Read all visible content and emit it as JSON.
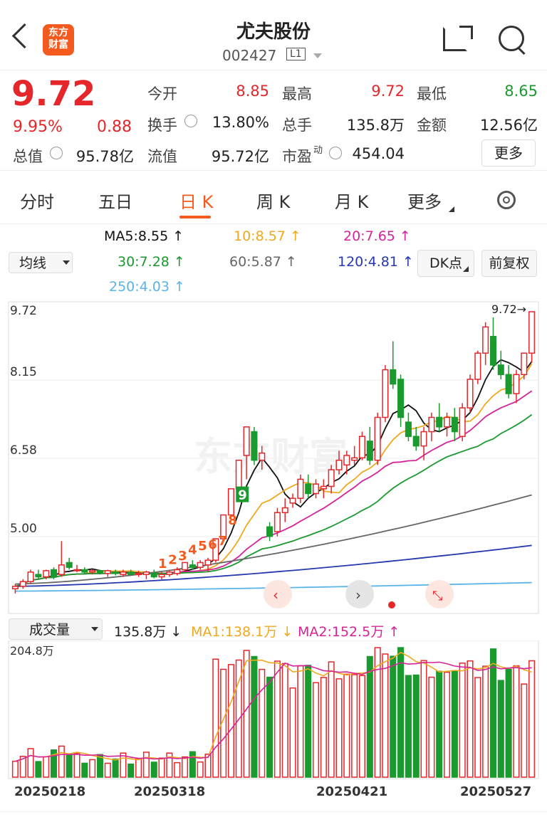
{
  "header": {
    "title": "尤夫股份",
    "code": "002427",
    "level": "L1",
    "logo_line1": "东方",
    "logo_line2": "财富"
  },
  "quote": {
    "price": "9.72",
    "change_pct": "9.95%",
    "change": "0.88",
    "open_label": "今开",
    "open": "8.85",
    "high_label": "最高",
    "high": "9.72",
    "low_label": "最低",
    "low": "8.65",
    "turnover_label": "换手",
    "turnover": "13.80%",
    "volume_label": "总手",
    "volume": "135.8万",
    "amount_label": "金额",
    "amount": "12.56亿",
    "mktcap_label": "总值",
    "mktcap": "95.78亿",
    "float_label": "流值",
    "float": "95.72亿",
    "pe_label": "市盈",
    "pe_sup": "动",
    "pe": "454.04",
    "more": "更多"
  },
  "tabs": [
    {
      "label": "分时"
    },
    {
      "label": "五日"
    },
    {
      "label": "日 K"
    },
    {
      "label": "周 K"
    },
    {
      "label": "月 K"
    },
    {
      "label": "更多"
    }
  ],
  "indicators": {
    "ma_select": "均线",
    "ma5": "MA5:8.55 ↑",
    "ma10": "10:8.57 ↑",
    "ma20": "20:7.65 ↑",
    "ma30": "30:7.28 ↑",
    "ma60": "60:5.87 ↑",
    "ma120": "120:4.81 ↑",
    "ma250": "250:4.03 ↑",
    "dk_button": "DK点",
    "fq_button": "前复权"
  },
  "price_axis": [
    "9.72",
    "8.15",
    "6.58",
    "5.00"
  ],
  "price_marker": "9.72→",
  "signal_numbers": [
    "1",
    "2",
    "3",
    "4",
    "5",
    "6",
    "7",
    "8",
    "9"
  ],
  "volume_panel": {
    "select": "成交量",
    "vol": "135.8万 ↓",
    "ma1": "MA1:138.1万 ↓",
    "ma2": "MA2:152.5万 ↑",
    "axis_max": "204.8万"
  },
  "date_labels": [
    "20250218",
    "20250318",
    "20250421",
    "20250527"
  ],
  "watermark": "东方财富",
  "colors": {
    "up": "#e5262b",
    "down": "#1b9a2f",
    "accent": "#f45a1e"
  },
  "chart_data": {
    "type": "candlestick",
    "candles": [
      [
        3.9,
        4.0,
        3.8,
        3.95
      ],
      [
        3.95,
        4.1,
        3.9,
        4.05
      ],
      [
        4.05,
        4.3,
        4.0,
        4.25
      ],
      [
        4.2,
        4.3,
        4.1,
        4.15
      ],
      [
        4.15,
        4.3,
        4.1,
        4.28
      ],
      [
        4.3,
        4.35,
        4.1,
        4.15
      ],
      [
        4.2,
        4.9,
        4.15,
        4.4
      ],
      [
        4.45,
        4.55,
        4.3,
        4.35
      ],
      [
        4.3,
        4.4,
        4.25,
        4.3
      ],
      [
        4.3,
        4.35,
        4.2,
        4.25
      ],
      [
        4.25,
        4.3,
        4.2,
        4.28
      ],
      [
        4.28,
        4.3,
        4.2,
        4.22
      ],
      [
        4.22,
        4.3,
        4.15,
        4.28
      ],
      [
        4.25,
        4.3,
        4.18,
        4.22
      ],
      [
        4.2,
        4.3,
        4.15,
        4.25
      ],
      [
        4.25,
        4.3,
        4.18,
        4.2
      ],
      [
        4.2,
        4.28,
        4.15,
        4.22
      ],
      [
        4.2,
        4.28,
        4.1,
        4.25
      ],
      [
        4.22,
        4.3,
        4.12,
        4.15
      ],
      [
        4.15,
        4.25,
        4.1,
        4.2
      ],
      [
        4.2,
        4.3,
        4.15,
        4.25
      ],
      [
        4.22,
        4.35,
        4.18,
        4.3
      ],
      [
        4.3,
        4.45,
        4.25,
        4.45
      ],
      [
        4.4,
        4.5,
        4.3,
        4.35
      ],
      [
        4.35,
        4.5,
        4.3,
        4.45
      ],
      [
        4.4,
        4.55,
        4.25,
        4.5
      ],
      [
        4.5,
        4.95,
        4.45,
        4.95
      ],
      [
        4.95,
        5.45,
        4.9,
        5.45
      ],
      [
        5.45,
        6.0,
        5.4,
        6.0
      ],
      [
        6.0,
        6.6,
        5.95,
        6.6
      ],
      [
        6.7,
        7.3,
        6.2,
        7.3
      ],
      [
        7.2,
        7.3,
        6.5,
        6.6
      ],
      [
        6.6,
        6.9,
        6.4,
        6.75
      ],
      [
        5.2,
        5.3,
        4.9,
        5.0
      ],
      [
        5.1,
        5.6,
        5.0,
        5.5
      ],
      [
        5.5,
        5.8,
        5.3,
        5.6
      ],
      [
        5.7,
        5.9,
        5.6,
        5.8
      ],
      [
        5.8,
        6.3,
        5.7,
        6.2
      ],
      [
        6.1,
        6.3,
        5.8,
        5.9
      ],
      [
        5.9,
        6.2,
        5.8,
        6.1
      ],
      [
        6.0,
        6.2,
        5.8,
        6.05
      ],
      [
        6.05,
        6.5,
        5.9,
        6.4
      ],
      [
        6.4,
        6.8,
        6.3,
        6.6
      ],
      [
        6.5,
        6.8,
        6.3,
        6.7
      ],
      [
        6.6,
        6.9,
        6.5,
        6.65
      ],
      [
        6.65,
        7.2,
        6.6,
        7.1
      ],
      [
        7.0,
        7.3,
        6.5,
        6.6
      ],
      [
        6.6,
        7.6,
        6.5,
        7.5
      ],
      [
        7.5,
        8.6,
        7.4,
        8.5
      ],
      [
        8.5,
        9.1,
        8.1,
        8.2
      ],
      [
        8.3,
        8.4,
        7.3,
        7.5
      ],
      [
        7.4,
        7.6,
        7.0,
        7.1
      ],
      [
        7.1,
        7.3,
        6.8,
        6.9
      ],
      [
        6.9,
        7.3,
        6.6,
        7.2
      ],
      [
        7.2,
        7.6,
        7.0,
        7.5
      ],
      [
        7.5,
        7.8,
        7.2,
        7.3
      ],
      [
        7.3,
        7.6,
        7.1,
        7.5
      ],
      [
        7.5,
        7.7,
        7.0,
        7.2
      ],
      [
        7.1,
        7.8,
        7.0,
        7.7
      ],
      [
        7.7,
        8.4,
        7.6,
        8.3
      ],
      [
        8.3,
        8.9,
        8.2,
        8.85
      ],
      [
        8.85,
        9.5,
        8.6,
        9.4
      ],
      [
        9.2,
        9.6,
        8.5,
        8.6
      ],
      [
        8.6,
        8.9,
        8.3,
        8.4
      ],
      [
        8.4,
        8.6,
        7.9,
        8.0
      ],
      [
        8.0,
        8.5,
        7.8,
        8.4
      ],
      [
        8.4,
        8.85,
        8.3,
        8.85
      ],
      [
        8.85,
        9.72,
        8.65,
        9.72
      ]
    ]
  }
}
